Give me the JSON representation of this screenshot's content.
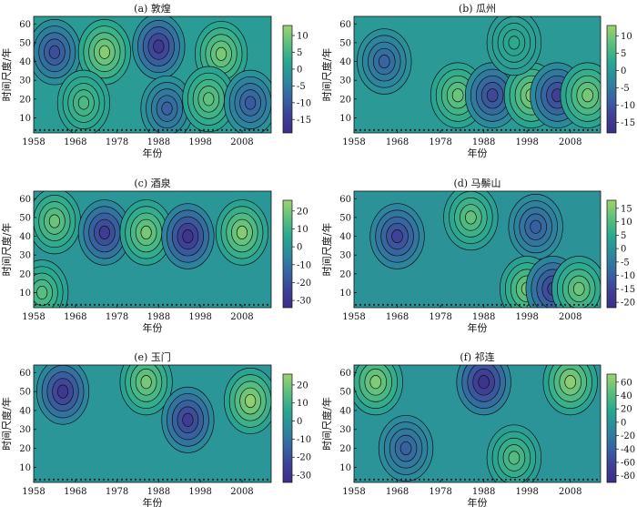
{
  "chart_data": [
    {
      "type": "heatmap",
      "title": "(a) 敦煌",
      "xlabel": "年份",
      "ylabel": "时间尺度/年",
      "x_ticks": [
        1958,
        1968,
        1978,
        1988,
        1998,
        2008
      ],
      "y_ticks": [
        10,
        20,
        30,
        40,
        50,
        60
      ],
      "xlim": [
        1958,
        2015
      ],
      "ylim": [
        2,
        64
      ],
      "colorbar_ticks": [
        10,
        5,
        0,
        -5,
        -10,
        -15
      ],
      "colorbar_range": [
        -19,
        13
      ],
      "features": [
        {
          "x": 1963,
          "y": 45,
          "value": -12
        },
        {
          "x": 1975,
          "y": 45,
          "value": 11
        },
        {
          "x": 1988,
          "y": 48,
          "value": -16
        },
        {
          "x": 2003,
          "y": 44,
          "value": 10
        },
        {
          "x": 1970,
          "y": 18,
          "value": 6
        },
        {
          "x": 1990,
          "y": 15,
          "value": -9
        },
        {
          "x": 2000,
          "y": 20,
          "value": 8
        },
        {
          "x": 2010,
          "y": 18,
          "value": -10
        }
      ]
    },
    {
      "type": "heatmap",
      "title": "(b) 瓜州",
      "xlabel": "年份",
      "ylabel": "时间尺度/年",
      "x_ticks": [
        1958,
        1968,
        1978,
        1988,
        1998,
        2008
      ],
      "y_ticks": [
        10,
        20,
        30,
        40,
        50,
        60
      ],
      "xlim": [
        1958,
        2015
      ],
      "ylim": [
        2,
        64
      ],
      "colorbar_ticks": [
        10,
        5,
        0,
        -5,
        -10,
        -15
      ],
      "colorbar_range": [
        -18,
        13
      ],
      "features": [
        {
          "x": 1965,
          "y": 40,
          "value": -8
        },
        {
          "x": 1982,
          "y": 22,
          "value": 9
        },
        {
          "x": 1990,
          "y": 22,
          "value": -12
        },
        {
          "x": 1999,
          "y": 22,
          "value": 11
        },
        {
          "x": 2005,
          "y": 22,
          "value": -13
        },
        {
          "x": 2012,
          "y": 22,
          "value": 10
        },
        {
          "x": 1995,
          "y": 50,
          "value": 3
        }
      ]
    },
    {
      "type": "heatmap",
      "title": "(c) 酒泉",
      "xlabel": "年份",
      "ylabel": "时间尺度/年",
      "x_ticks": [
        1958,
        1968,
        1978,
        1988,
        1998,
        2008
      ],
      "y_ticks": [
        10,
        20,
        30,
        40,
        50,
        60
      ],
      "xlim": [
        1958,
        2015
      ],
      "ylim": [
        2,
        64
      ],
      "colorbar_ticks": [
        20,
        10,
        0,
        -10,
        -20,
        -30
      ],
      "colorbar_range": [
        -34,
        26
      ],
      "features": [
        {
          "x": 1963,
          "y": 48,
          "value": 18
        },
        {
          "x": 1975,
          "y": 42,
          "value": -26
        },
        {
          "x": 1985,
          "y": 42,
          "value": 20
        },
        {
          "x": 1995,
          "y": 40,
          "value": -30
        },
        {
          "x": 2008,
          "y": 42,
          "value": 22
        },
        {
          "x": 1960,
          "y": 10,
          "value": 15
        }
      ]
    },
    {
      "type": "heatmap",
      "title": "(d) 马鬃山",
      "xlabel": "年份",
      "ylabel": "时间尺度/年",
      "x_ticks": [
        1958,
        1968,
        1978,
        1988,
        1998,
        2008
      ],
      "y_ticks": [
        10,
        20,
        30,
        40,
        50,
        60
      ],
      "xlim": [
        1958,
        2015
      ],
      "ylim": [
        2,
        64
      ],
      "colorbar_ticks": [
        15,
        10,
        5,
        0,
        -5,
        -10,
        -15,
        -20
      ],
      "colorbar_range": [
        -22,
        18
      ],
      "features": [
        {
          "x": 1968,
          "y": 40,
          "value": -15
        },
        {
          "x": 1985,
          "y": 50,
          "value": 12
        },
        {
          "x": 2000,
          "y": 45,
          "value": -10
        },
        {
          "x": 1998,
          "y": 12,
          "value": 14
        },
        {
          "x": 2004,
          "y": 12,
          "value": -16
        },
        {
          "x": 2010,
          "y": 12,
          "value": 13
        }
      ]
    },
    {
      "type": "heatmap",
      "title": "(e) 玉门",
      "xlabel": "年份",
      "ylabel": "时间尺度/年",
      "x_ticks": [
        1958,
        1968,
        1978,
        1988,
        1998,
        2008
      ],
      "y_ticks": [
        10,
        20,
        30,
        40,
        50,
        60
      ],
      "xlim": [
        1958,
        2015
      ],
      "ylim": [
        2,
        64
      ],
      "colorbar_ticks": [
        20,
        10,
        0,
        -10,
        -20,
        -30
      ],
      "colorbar_range": [
        -34,
        26
      ],
      "features": [
        {
          "x": 1965,
          "y": 50,
          "value": -28
        },
        {
          "x": 1985,
          "y": 55,
          "value": 20
        },
        {
          "x": 1995,
          "y": 35,
          "value": -26
        },
        {
          "x": 2010,
          "y": 45,
          "value": 24
        }
      ]
    },
    {
      "type": "heatmap",
      "title": "(f) 祁连",
      "xlabel": "年份",
      "ylabel": "时间尺度/年",
      "x_ticks": [
        1958,
        1968,
        1978,
        1988,
        1998,
        2008
      ],
      "y_ticks": [
        10,
        20,
        30,
        40,
        50,
        60
      ],
      "xlim": [
        1958,
        2015
      ],
      "ylim": [
        2,
        64
      ],
      "colorbar_ticks": [
        60,
        40,
        20,
        0,
        -20,
        -40,
        -60,
        -80
      ],
      "colorbar_range": [
        -90,
        72
      ],
      "features": [
        {
          "x": 1963,
          "y": 55,
          "value": 60
        },
        {
          "x": 1988,
          "y": 55,
          "value": -80
        },
        {
          "x": 2008,
          "y": 55,
          "value": 65
        },
        {
          "x": 1970,
          "y": 20,
          "value": -40
        },
        {
          "x": 1995,
          "y": 15,
          "value": 40
        }
      ]
    }
  ],
  "colors": {
    "colormap": [
      "#3b2e86",
      "#3f4196",
      "#3667a0",
      "#2b8a9c",
      "#2aa88f",
      "#5cbf7e",
      "#9fd36f"
    ],
    "contour_line": "#111111",
    "marker_dot": "#222222"
  }
}
